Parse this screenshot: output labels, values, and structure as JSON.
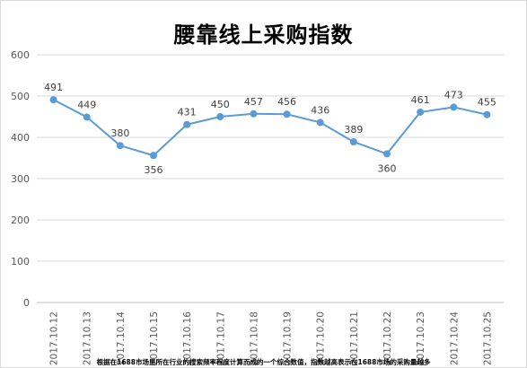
{
  "chart_data": {
    "type": "line",
    "title": "腰靠线上采购指数",
    "categories": [
      "2017.10.12",
      "2017.10.13",
      "2017.10.14",
      "2017.10.15",
      "2017.10.16",
      "2017.10.17",
      "2017.10.18",
      "2017.10.19",
      "2017.10.20",
      "2017.10.21",
      "2017.10.22",
      "2017.10.23",
      "2017.10.24",
      "2017.10.25"
    ],
    "values": [
      491,
      449,
      380,
      356,
      431,
      450,
      457,
      456,
      436,
      389,
      360,
      461,
      473,
      455
    ],
    "data_labels": [
      "491",
      "449",
      "380",
      "356",
      "431",
      "450",
      "457",
      "456",
      "436",
      "389",
      "360",
      "461",
      "473",
      "455"
    ],
    "yticks": [
      "0",
      "100",
      "200",
      "300",
      "400",
      "500",
      "600"
    ],
    "ylim": [
      0,
      600
    ],
    "grid": true,
    "line_color": "#5b9bd5",
    "grid_color": "#d9d9d9",
    "footnote": "根据在1688市场里所在行业的搜索频率程度计算而成的一个综合数值，指数越高表示在1688市场的采购量越多"
  }
}
